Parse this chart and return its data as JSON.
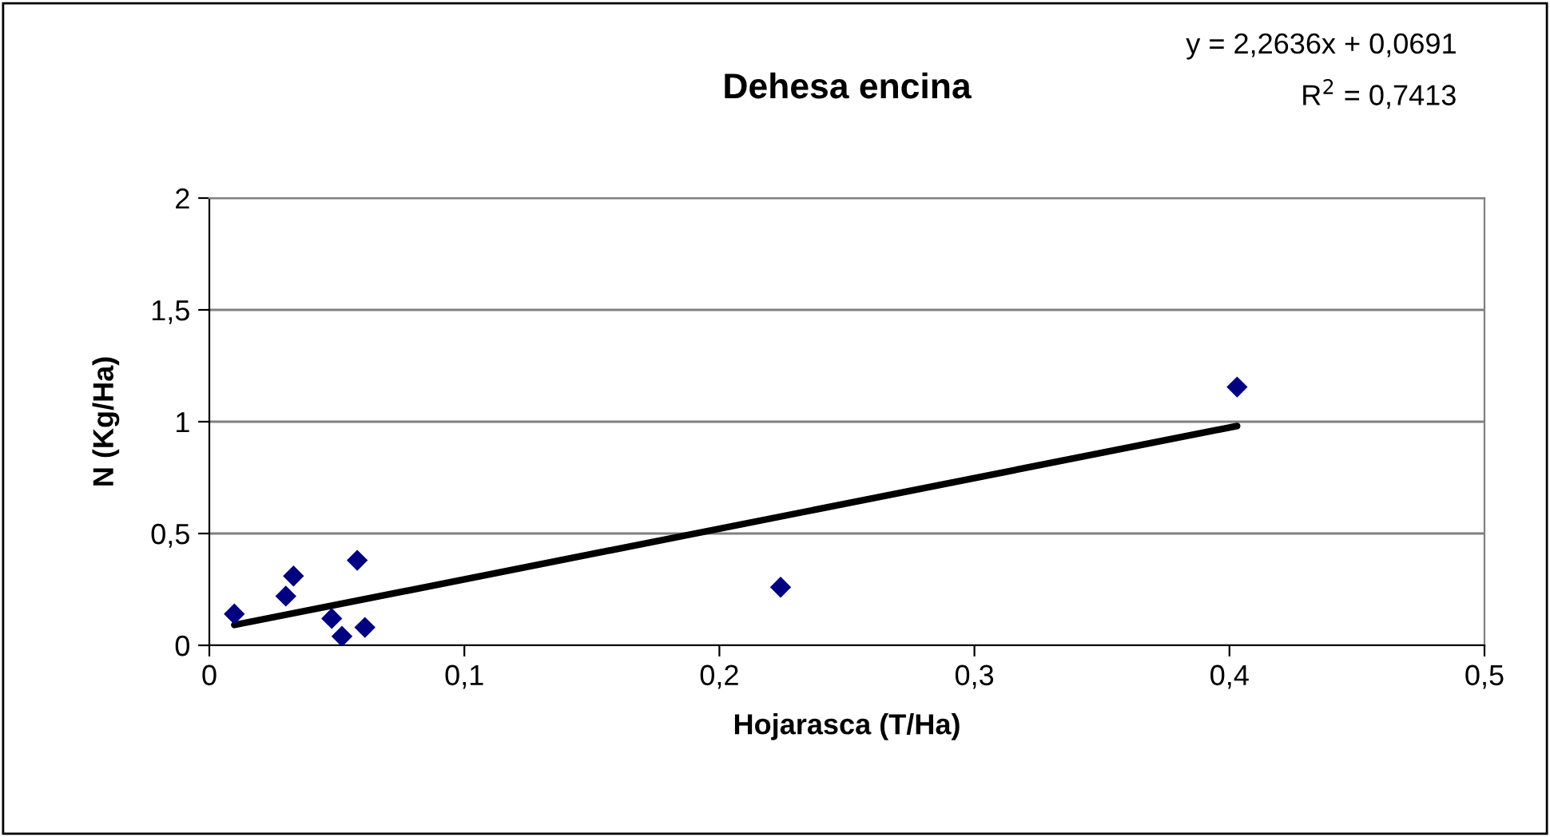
{
  "chart_data": {
    "type": "scatter",
    "title": "Dehesa encina",
    "xlabel": "Hojarasca (T/Ha)",
    "ylabel": "N (Kg/Ha)",
    "xlim": [
      0,
      0.5
    ],
    "xticks": [
      {
        "value": 0,
        "label": "0"
      },
      {
        "value": 0.1,
        "label": "0,1"
      },
      {
        "value": 0.2,
        "label": "0,2"
      },
      {
        "value": 0.3,
        "label": "0,3"
      },
      {
        "value": 0.4,
        "label": "0,4"
      },
      {
        "value": 0.5,
        "label": "0,5"
      }
    ],
    "ylim": [
      0,
      2
    ],
    "yticks": [
      {
        "value": 0,
        "label": "0"
      },
      {
        "value": 0.5,
        "label": "0,5"
      },
      {
        "value": 1,
        "label": "1"
      },
      {
        "value": 1.5,
        "label": "1,5"
      },
      {
        "value": 2,
        "label": "2"
      }
    ],
    "grid": "y",
    "legend": false,
    "series": [
      {
        "marker": "diamond",
        "color": "#000080",
        "x": [
          0.0098,
          0.03,
          0.033,
          0.048,
          0.052,
          0.058,
          0.061,
          0.224,
          0.403
        ],
        "values": [
          0.14,
          0.22,
          0.31,
          0.12,
          0.04,
          0.38,
          0.08,
          0.26,
          1.155
        ]
      },
      {
        "type": "line",
        "color": "#000000",
        "x": [
          0.0098,
          0.403
        ],
        "values": [
          0.091,
          0.981
        ]
      }
    ],
    "annotations": [
      "y = 2,2636x + 0,0691",
      "R$^{2}$ = 0,7413"
    ]
  }
}
